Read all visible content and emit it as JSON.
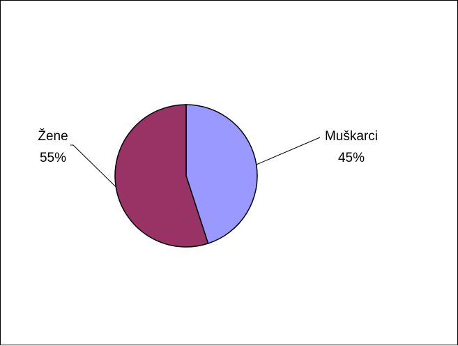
{
  "chart_data": {
    "type": "pie",
    "title": "",
    "start_angle_deg": 0,
    "direction": "clockwise",
    "legend": "none",
    "slices": [
      {
        "label": "Muškarci",
        "percent_label": "45%",
        "value": 45,
        "color": "#9999ff"
      },
      {
        "label": "Žene",
        "percent_label": "55%",
        "value": 55,
        "color": "#993366"
      }
    ]
  }
}
